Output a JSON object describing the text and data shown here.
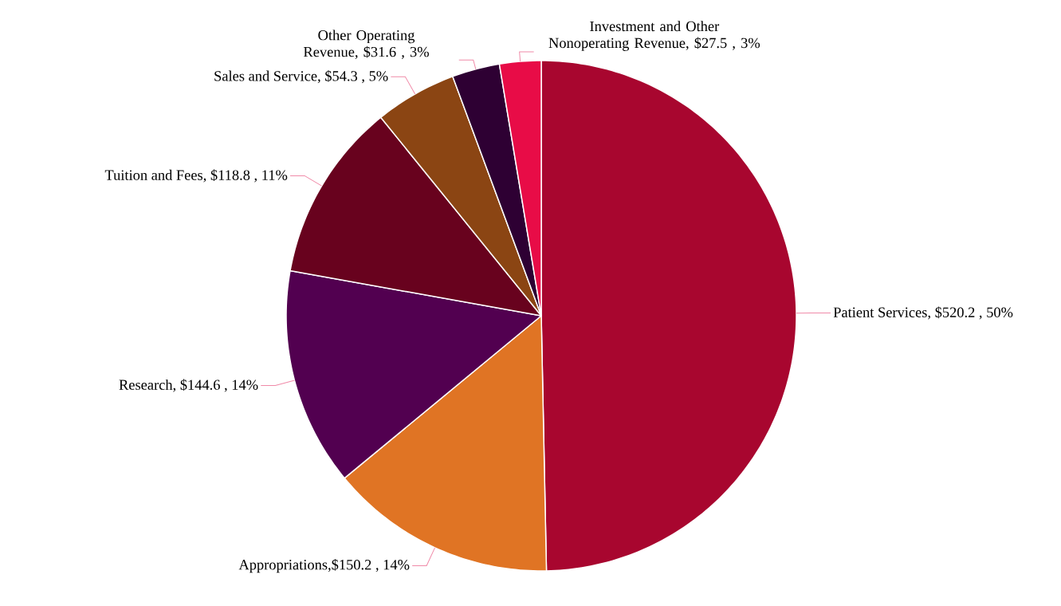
{
  "chart_data": {
    "type": "pie",
    "categories": [
      "Patient Services, $520.2 , 50%",
      "Appropriations,$150.2 , 14%",
      "Research, $144.6 , 14%",
      "Tuition and Fees, $118.8 , 11%",
      "Sales and Service, $54.3 , 5%",
      "Other Operating Revenue, $31.6 , 3%",
      "Investment and Other Nonoperating Revenue, $27.5 , 3%"
    ],
    "values": [
      520.2,
      150.2,
      144.6,
      118.8,
      54.3,
      31.6,
      27.5
    ],
    "colors": [
      "#a8062f",
      "#e07424",
      "#520050",
      "#68021e",
      "#8b4513",
      "#2e0033",
      "#e80c47"
    ]
  }
}
